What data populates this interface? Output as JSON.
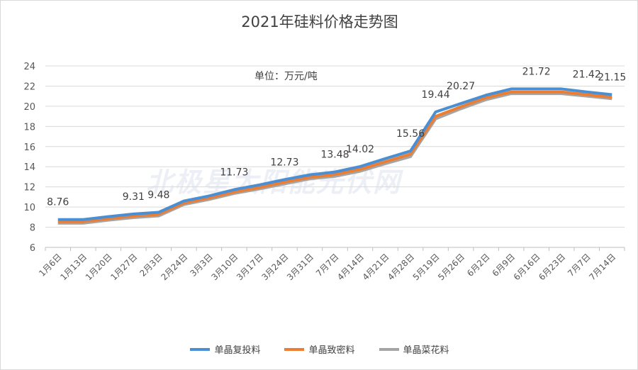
{
  "chart_data": {
    "type": "line",
    "title": "2021年硅料价格走势图",
    "annotation": "单位：万元/吨",
    "categories": [
      "1月6日",
      "1月13日",
      "1月20日",
      "1月27日",
      "2月3日",
      "2月24日",
      "3月3日",
      "3月10日",
      "3月17日",
      "3月24日",
      "3月31日",
      "7月7日",
      "4月14日",
      "4月21日",
      "4月28日",
      "5月19日",
      "5月26日",
      "6月2日",
      "6月9日",
      "6月16日",
      "6月23日",
      "7月7日",
      "7月14日"
    ],
    "ylim": [
      6,
      24
    ],
    "yticks": [
      6,
      8,
      10,
      12,
      14,
      16,
      18,
      20,
      22,
      24
    ],
    "grid": true,
    "legend": "bottom",
    "series": [
      {
        "name": "单晶复投料",
        "color": "#4a8fd4",
        "values": [
          8.76,
          8.76,
          9.05,
          9.31,
          9.48,
          10.6,
          11.1,
          11.73,
          12.2,
          12.73,
          13.2,
          13.48,
          14.02,
          14.8,
          15.56,
          19.44,
          20.27,
          21.1,
          21.72,
          21.72,
          21.72,
          21.42,
          21.15
        ],
        "labels": {
          "0": "8.76",
          "3": "9.31",
          "4": "9.48",
          "7": "11.73",
          "9": "12.73",
          "11": "13.48",
          "12": "14.02",
          "14": "15.56",
          "15": "19.44",
          "16": "20.27",
          "19": "21.72",
          "21": "21.42",
          "22": "21.15"
        }
      },
      {
        "name": "单晶致密料",
        "color": "#ed7d31",
        "values": [
          8.56,
          8.56,
          8.85,
          9.11,
          9.28,
          10.4,
          10.9,
          11.5,
          11.95,
          12.48,
          12.95,
          13.23,
          13.75,
          14.5,
          15.25,
          19.0,
          19.95,
          20.85,
          21.42,
          21.42,
          21.42,
          21.15,
          20.9
        ]
      },
      {
        "name": "单晶菜花料",
        "color": "#a5a5a5",
        "values": [
          8.4,
          8.4,
          8.7,
          8.95,
          9.12,
          10.25,
          10.75,
          11.35,
          11.8,
          12.3,
          12.8,
          13.05,
          13.55,
          14.3,
          15.0,
          18.75,
          19.75,
          20.65,
          21.25,
          21.25,
          21.25,
          21.0,
          20.75
        ]
      }
    ]
  }
}
